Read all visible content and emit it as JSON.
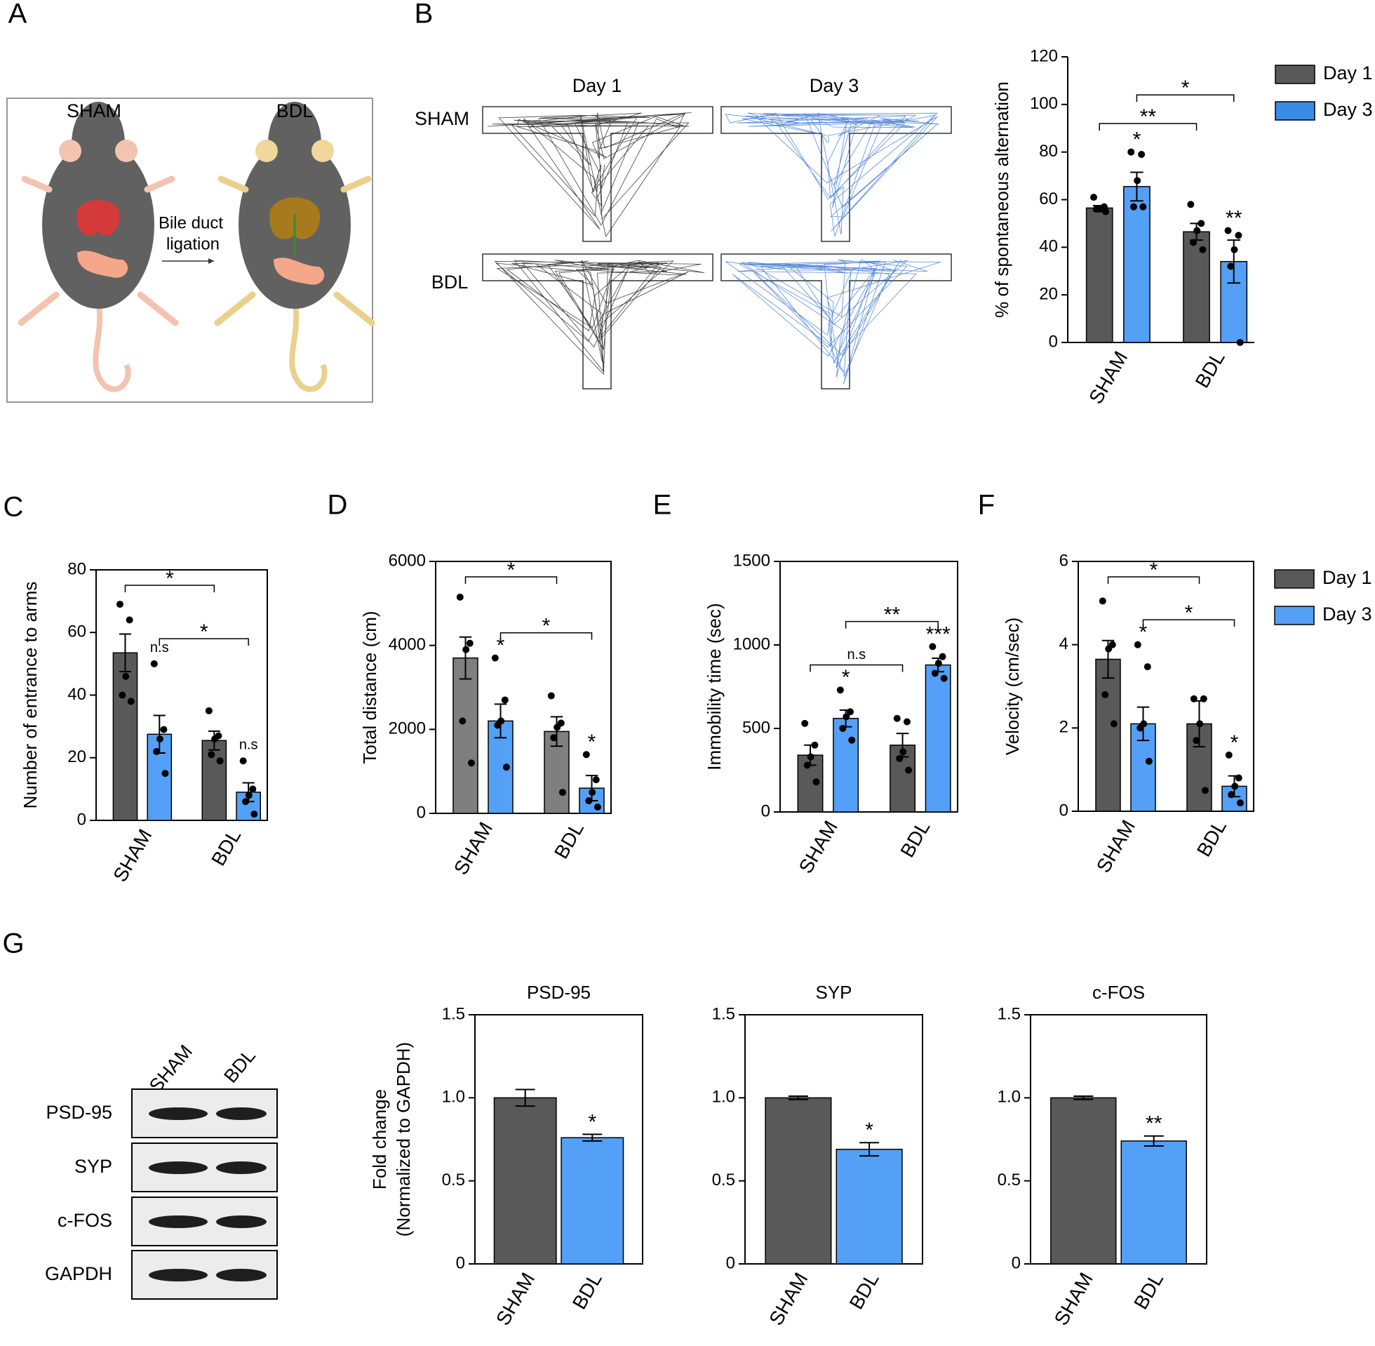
{
  "panels": [
    "A",
    "B",
    "C",
    "D",
    "E",
    "F",
    "G"
  ],
  "illustration": {
    "labels": [
      "SHAM",
      "BDL"
    ],
    "arrow_label": [
      "Bile duct",
      "ligation"
    ]
  },
  "maze": {
    "columns": [
      "Day 1",
      "Day 3"
    ],
    "rows": [
      "SHAM",
      "BDL"
    ]
  },
  "western_blot": {
    "lanes": [
      "SHAM",
      "BDL"
    ],
    "rows": [
      "PSD-95",
      "SYP",
      "c-FOS",
      "GAPDH"
    ]
  },
  "chart_data": [
    {
      "type": "bar",
      "ylabel": "% of spontaneous alternation",
      "categories": [
        "SHAM",
        "BDL"
      ],
      "ylim": [
        0,
        120
      ],
      "yticks": [
        0,
        20,
        40,
        60,
        80,
        100,
        120
      ],
      "legend": "right",
      "series": [
        {
          "name": "Day 1",
          "color": "#595959",
          "values": [
            56.5,
            46.5
          ],
          "errors": [
            1,
            3.5
          ],
          "points": [
            [
              61,
              57,
              56,
              56,
              55
            ],
            [
              58,
              50,
              47,
              42,
              39
            ]
          ]
        },
        {
          "name": "Day 3",
          "color": "#55a0f7",
          "values": [
            65.5,
            34
          ],
          "errors": [
            6,
            9
          ],
          "points": [
            [
              80,
              79,
              68,
              57,
              57
            ],
            [
              47,
              45,
              39,
              32,
              0
            ]
          ],
          "marks": [
            "*",
            "**"
          ]
        }
      ],
      "brackets": [
        {
          "from": [
            0,
            0
          ],
          "to": [
            1,
            0
          ],
          "label": "**"
        },
        {
          "from": [
            0,
            1
          ],
          "to": [
            1,
            1
          ],
          "label": "*"
        }
      ]
    },
    {
      "type": "bar",
      "box": true,
      "ylabel": "Number of entrance to arms",
      "categories": [
        "SHAM",
        "BDL"
      ],
      "ylim": [
        0,
        80
      ],
      "yticks": [
        0,
        20,
        40,
        60,
        80
      ],
      "series": [
        {
          "color": "#595959",
          "values": [
            53.5,
            25.5
          ],
          "errors": [
            6,
            3
          ],
          "points": [
            [
              69,
              64,
              46,
              40,
              38
            ],
            [
              35,
              27,
              26,
              21,
              19
            ]
          ]
        },
        {
          "color": "#55a0f7",
          "values": [
            27.5,
            9
          ],
          "errors": [
            6,
            3
          ],
          "points": [
            [
              50,
              29,
              26,
              22,
              15
            ],
            [
              19,
              10,
              8,
              6,
              2
            ]
          ],
          "marks": [
            "n.s",
            "n.s"
          ]
        }
      ],
      "brackets": [
        {
          "from": [
            0,
            1
          ],
          "to": [
            1,
            1
          ],
          "label": "*"
        },
        {
          "from": [
            0,
            0
          ],
          "to": [
            1,
            0
          ],
          "label": "*"
        }
      ]
    },
    {
      "type": "bar",
      "box": true,
      "ylabel": "Total distance (cm)",
      "categories": [
        "SHAM",
        "BDL"
      ],
      "ylim": [
        0,
        6000
      ],
      "yticks": [
        0,
        2000,
        4000,
        6000
      ],
      "series": [
        {
          "color": "#7f7f7f",
          "values": [
            3700,
            1950
          ],
          "errors": [
            500,
            350
          ],
          "points": [
            [
              5150,
              4050,
              3900,
              2200,
              1200
            ],
            [
              2800,
              2150,
              2050,
              1800,
              500
            ]
          ]
        },
        {
          "color": "#55a0f7",
          "values": [
            2200,
            600
          ],
          "errors": [
            400,
            300
          ],
          "points": [
            [
              3700,
              2700,
              2200,
              2100,
              1100
            ],
            [
              1400,
              800,
              500,
              300,
              150
            ]
          ],
          "marks": [
            "*",
            "*"
          ]
        }
      ],
      "brackets": [
        {
          "from": [
            0,
            1
          ],
          "to": [
            1,
            1
          ],
          "label": "*"
        },
        {
          "from": [
            0,
            0
          ],
          "to": [
            1,
            0
          ],
          "label": "*"
        }
      ]
    },
    {
      "type": "bar",
      "box": true,
      "ylabel": "Immobility time (sec)",
      "categories": [
        "SHAM",
        "BDL"
      ],
      "ylim": [
        0,
        1500
      ],
      "yticks": [
        0,
        500,
        1000,
        1500
      ],
      "series": [
        {
          "color": "#595959",
          "values": [
            340,
            400
          ],
          "errors": [
            60,
            70
          ],
          "points": [
            [
              530,
              400,
              330,
              280,
              180
            ],
            [
              560,
              540,
              360,
              320,
              250
            ]
          ]
        },
        {
          "color": "#55a0f7",
          "values": [
            560,
            880
          ],
          "errors": [
            50,
            40
          ],
          "points": [
            [
              730,
              600,
              570,
              500,
              430
            ],
            [
              990,
              930,
              890,
              830,
              800
            ]
          ],
          "marks": [
            "*",
            "***"
          ]
        }
      ],
      "brackets": [
        {
          "from": [
            0,
            0
          ],
          "to": [
            1,
            0
          ],
          "label": "n.s"
        },
        {
          "from": [
            0,
            1
          ],
          "to": [
            1,
            1
          ],
          "label": "**"
        }
      ]
    },
    {
      "type": "bar",
      "box": true,
      "ylabel": "Velocity (cm/sec)",
      "categories": [
        "SHAM",
        "BDL"
      ],
      "ylim": [
        0,
        6
      ],
      "yticks": [
        0,
        2,
        4,
        6
      ],
      "legend": "right",
      "series": [
        {
          "name": "Day 1",
          "color": "#595959",
          "values": [
            3.65,
            2.1
          ],
          "errors": [
            0.45,
            0.55
          ],
          "points": [
            [
              5.05,
              4.0,
              3.9,
              2.8,
              2.1
            ],
            [
              2.7,
              2.7,
              2.1,
              1.7,
              0.5
            ]
          ]
        },
        {
          "name": "Day 3",
          "color": "#55a0f7",
          "values": [
            2.1,
            0.6
          ],
          "errors": [
            0.4,
            0.25
          ],
          "points": [
            [
              4.0,
              3.47,
              2.1,
              2.0,
              1.2
            ],
            [
              1.35,
              0.8,
              0.6,
              0.4,
              0.2
            ]
          ],
          "marks": [
            "*",
            "*"
          ]
        }
      ],
      "brackets": [
        {
          "from": [
            0,
            1
          ],
          "to": [
            1,
            1
          ],
          "label": "*"
        },
        {
          "from": [
            0,
            0
          ],
          "to": [
            1,
            0
          ],
          "label": "*"
        }
      ]
    },
    {
      "type": "bar",
      "box": true,
      "title": "PSD-95",
      "ylabel": [
        "Fold change",
        "(Normalized to GAPDH)"
      ],
      "categories": [
        "SHAM",
        "BDL"
      ],
      "ylim": [
        0,
        1.5
      ],
      "yticks": [
        0,
        0.5,
        {
          "value": 1,
          "label": "1.0"
        },
        1.5
      ],
      "series": [
        {
          "colors": [
            "#595959",
            "#55a0f7"
          ],
          "values": [
            1.0,
            0.76
          ],
          "errors": [
            0.05,
            0.02
          ],
          "marks": [
            null,
            "*"
          ]
        }
      ]
    },
    {
      "type": "bar",
      "box": true,
      "title": "SYP",
      "categories": [
        "SHAM",
        "BDL"
      ],
      "ylim": [
        0,
        1.5
      ],
      "yticks": [
        0,
        0.5,
        {
          "value": 1,
          "label": "1.0"
        },
        1.5
      ],
      "series": [
        {
          "colors": [
            "#595959",
            "#55a0f7"
          ],
          "values": [
            1.0,
            0.69
          ],
          "errors": [
            0.01,
            0.04
          ],
          "marks": [
            null,
            "*"
          ]
        }
      ]
    },
    {
      "type": "bar",
      "box": true,
      "title": "c-FOS",
      "categories": [
        "SHAM",
        "BDL"
      ],
      "ylim": [
        0,
        1.5
      ],
      "yticks": [
        0,
        0.5,
        {
          "value": 1,
          "label": "1.0"
        },
        1.5
      ],
      "series": [
        {
          "colors": [
            "#595959",
            "#55a0f7"
          ],
          "values": [
            1.0,
            0.74
          ],
          "errors": [
            0.01,
            0.03
          ],
          "marks": [
            null,
            "**"
          ]
        }
      ]
    }
  ]
}
